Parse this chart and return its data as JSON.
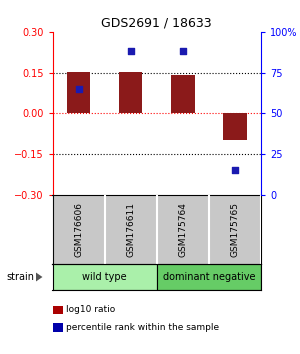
{
  "title": "GDS2691 / 18633",
  "samples": [
    "GSM176606",
    "GSM176611",
    "GSM175764",
    "GSM175765"
  ],
  "bar_values": [
    0.152,
    0.152,
    0.14,
    -0.1
  ],
  "percentile_values": [
    65,
    88,
    88,
    15
  ],
  "bar_color": "#8B1A1A",
  "dot_color": "#1A1AB0",
  "ylim_left": [
    -0.3,
    0.3
  ],
  "ylim_right": [
    0,
    100
  ],
  "yticks_left": [
    -0.3,
    -0.15,
    0,
    0.15,
    0.3
  ],
  "yticks_right": [
    0,
    25,
    50,
    75,
    100
  ],
  "ytick_labels_right": [
    "0",
    "25",
    "50",
    "75",
    "100%"
  ],
  "hlines_black": [
    -0.15,
    0.15
  ],
  "hline_red": 0,
  "groups": [
    {
      "label": "wild type",
      "samples": [
        0,
        1
      ],
      "color": "#AAF0AA"
    },
    {
      "label": "dominant negative",
      "samples": [
        2,
        3
      ],
      "color": "#66CC66"
    }
  ],
  "sample_box_color": "#C8C8C8",
  "legend": [
    {
      "color": "#AA0000",
      "label": "log10 ratio"
    },
    {
      "color": "#0000AA",
      "label": "percentile rank within the sample"
    }
  ],
  "bar_width": 0.45
}
